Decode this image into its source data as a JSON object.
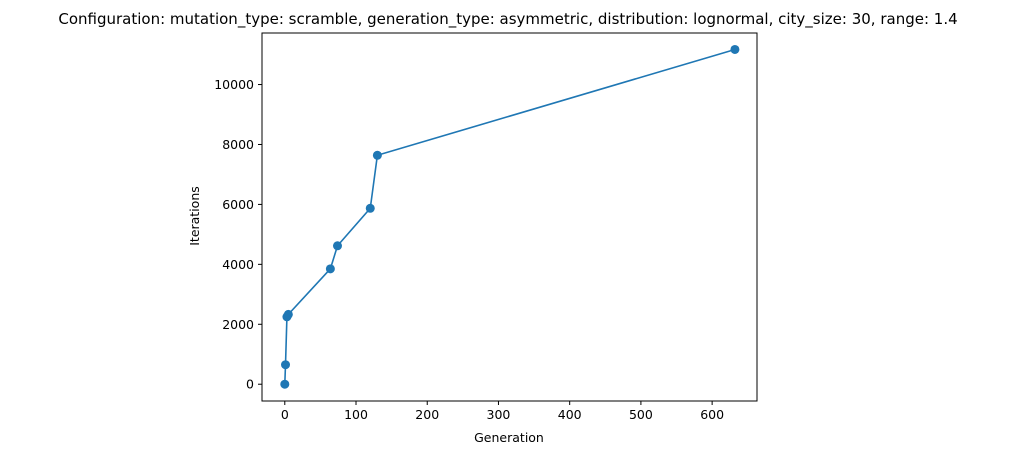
{
  "chart_data": {
    "type": "line",
    "title": "Configuration: mutation_type: scramble, generation_type: asymmetric, distribution: lognormal, city_size: 30, range: 1.4",
    "xlabel": "Generation",
    "ylabel": "Iterations",
    "xlim": [
      -32,
      663
    ],
    "ylim": [
      -560,
      11720
    ],
    "xticks": [
      0,
      100,
      200,
      300,
      400,
      500,
      600
    ],
    "yticks": [
      0,
      2000,
      4000,
      6000,
      8000,
      10000
    ],
    "grid": false,
    "series": [
      {
        "color": "#1f77b4",
        "marker": "circle",
        "points": [
          {
            "x": 0,
            "y": 0
          },
          {
            "x": 1,
            "y": 650
          },
          {
            "x": 3,
            "y": 2250
          },
          {
            "x": 5,
            "y": 2330
          },
          {
            "x": 64,
            "y": 3850
          },
          {
            "x": 74,
            "y": 4620
          },
          {
            "x": 120,
            "y": 5870
          },
          {
            "x": 130,
            "y": 7640
          },
          {
            "x": 632,
            "y": 11170
          }
        ]
      }
    ]
  }
}
